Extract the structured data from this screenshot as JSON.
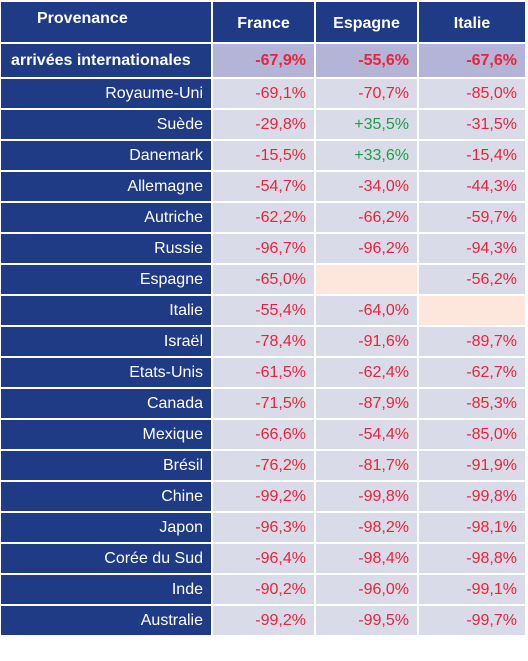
{
  "header": {
    "provenance": "Provenance",
    "countries": [
      "France",
      "Espagne",
      "Italie"
    ]
  },
  "total": {
    "label": "arrivées internationales",
    "values": [
      "-67,9%",
      "-55,6%",
      "-67,6%"
    ]
  },
  "rows": [
    {
      "label": "Royaume-Uni",
      "values": [
        "-69,1%",
        "-70,7%",
        "-85,0%"
      ]
    },
    {
      "label": "Suède",
      "values": [
        "-29,8%",
        "+35,5%",
        "-31,5%"
      ]
    },
    {
      "label": "Danemark",
      "values": [
        "-15,5%",
        "+33,6%",
        "-15,4%"
      ]
    },
    {
      "label": "Allemagne",
      "values": [
        "-54,7%",
        "-34,0%",
        "-44,3%"
      ]
    },
    {
      "label": "Autriche",
      "values": [
        "-62,2%",
        "-66,2%",
        "-59,7%"
      ]
    },
    {
      "label": "Russie",
      "values": [
        "-96,7%",
        "-96,2%",
        "-94,3%"
      ]
    },
    {
      "label": "Espagne",
      "values": [
        "-65,0%",
        "",
        "-56,2%"
      ]
    },
    {
      "label": "Italie",
      "values": [
        "-55,4%",
        "-64,0%",
        ""
      ]
    },
    {
      "label": "Israël",
      "values": [
        "-78,4%",
        "-91,6%",
        "-89,7%"
      ]
    },
    {
      "label": "Etats-Unis",
      "values": [
        "-61,5%",
        "-62,4%",
        "-62,7%"
      ]
    },
    {
      "label": "Canada",
      "values": [
        "-71,5%",
        "-87,9%",
        "-85,3%"
      ]
    },
    {
      "label": "Mexique",
      "values": [
        "-66,6%",
        "-54,4%",
        "-85,0%"
      ]
    },
    {
      "label": "Brésil",
      "values": [
        "-76,2%",
        "-81,7%",
        "-91,9%"
      ]
    },
    {
      "label": "Chine",
      "values": [
        "-99,2%",
        "-99,8%",
        "-99,8%"
      ]
    },
    {
      "label": "Japon",
      "values": [
        "-96,3%",
        "-98,2%",
        "-98,1%"
      ]
    },
    {
      "label": "Corée du Sud",
      "values": [
        "-96,4%",
        "-98,4%",
        "-98,8%"
      ]
    },
    {
      "label": "Inde",
      "values": [
        "-90,2%",
        "-96,0%",
        "-99,1%"
      ]
    },
    {
      "label": "Australie",
      "values": [
        "-99,2%",
        "-99,5%",
        "-99,7%"
      ]
    }
  ],
  "colors": {
    "header_bg": "#1f3b86",
    "cell_bg": "#dadbe9",
    "total_bg": "#b3b4d6",
    "empty_bg": "#fde6dc",
    "negative": "#e8243b",
    "positive": "#1e9e45"
  }
}
